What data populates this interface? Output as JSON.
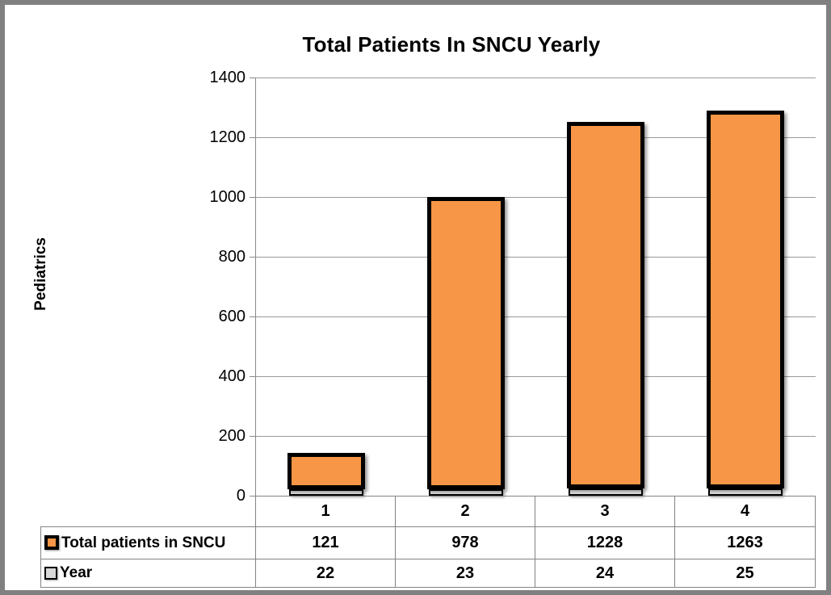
{
  "chart_data": {
    "type": "bar",
    "stacked": true,
    "title": "Total Patients In SNCU Yearly",
    "ylabel": "Pediatrics",
    "xlabel": "",
    "categories": [
      "1",
      "2",
      "3",
      "4"
    ],
    "series": [
      {
        "name": "Total patients in SNCU",
        "values": [
          121,
          978,
          1228,
          1263
        ],
        "color": "#F79646"
      },
      {
        "name": "Year",
        "values": [
          22,
          23,
          24,
          25
        ],
        "color": "#D9D9D9"
      }
    ],
    "stack_order_note": "Year series rendered at base of stack, Total patients on top",
    "ylim": [
      0,
      1400
    ],
    "yticks": [
      0,
      200,
      400,
      600,
      800,
      1000,
      1200,
      1400
    ],
    "grid": "horizontal",
    "legend_position": "data-table-left",
    "data_table": true
  },
  "colors": {
    "series0_fill": "#F79646",
    "series0_border": "#000000",
    "series1_fill": "#D9D9D9",
    "series1_border": "#000000",
    "gridline": "#9A9A9A",
    "table_border": "#848484",
    "outer_border": "#808080",
    "background": "#FFFFFF",
    "text": "#000000"
  }
}
